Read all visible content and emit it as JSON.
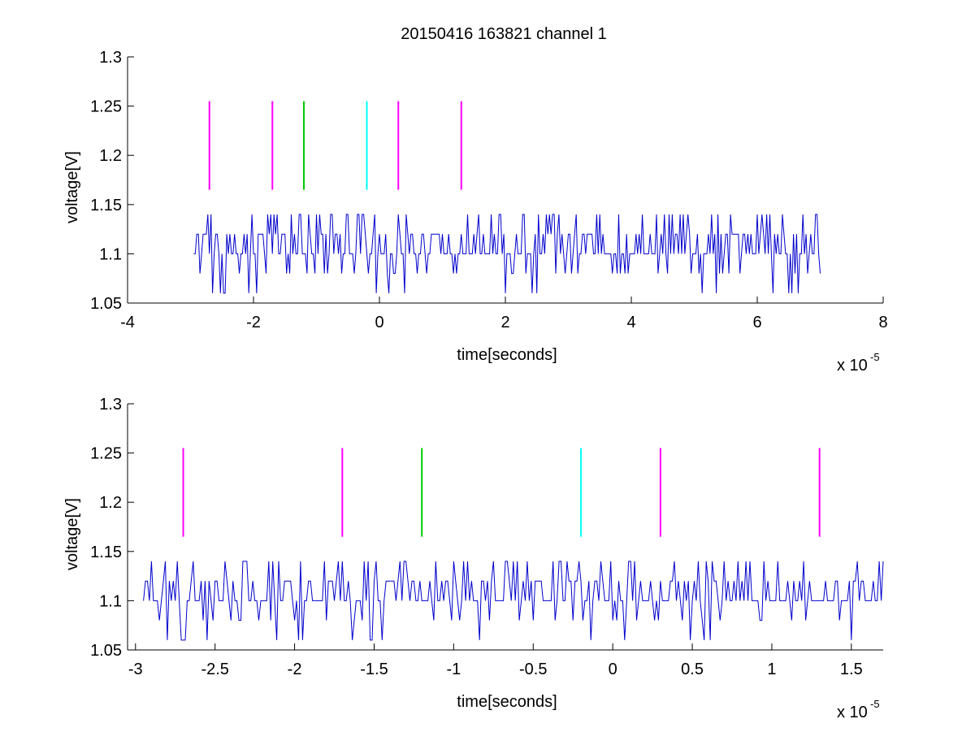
{
  "figure": {
    "title": "20150416 163821 channel 1",
    "background": "#ffffff"
  },
  "chart_data": [
    {
      "type": "line",
      "title": "20150416 163821 channel 1",
      "xlabel": "time[seconds]",
      "ylabel": "voltage[V]",
      "x_exponent_label": "x 10",
      "x_exponent_power": "-5",
      "xlim": [
        -4,
        8
      ],
      "ylim": [
        1.05,
        1.3
      ],
      "xticks": [
        -4,
        -2,
        0,
        2,
        4,
        6,
        8
      ],
      "xtick_labels": [
        "-4",
        "-2",
        "0",
        "2",
        "4",
        "6",
        "8"
      ],
      "yticks": [
        1.05,
        1.1,
        1.15,
        1.2,
        1.25,
        1.3
      ],
      "ytick_labels": [
        "1.05",
        "1.1",
        "1.15",
        "1.2",
        "1.25",
        "1.3"
      ],
      "grid": false,
      "signal": {
        "color": "#0000cc",
        "x_range": [
          -2.95,
          7.0
        ],
        "levels": [
          1.06,
          1.08,
          1.1,
          1.12,
          1.14
        ],
        "baseline": 1.1,
        "description_units": "x values in units of 1e-5 seconds"
      },
      "markers": {
        "y_range": [
          1.165,
          1.255
        ],
        "lines": [
          {
            "x": -2.7,
            "color": "#ff00ff"
          },
          {
            "x": -1.7,
            "color": "#ff00ff"
          },
          {
            "x": -1.2,
            "color": "#00cc00"
          },
          {
            "x": -0.2,
            "color": "#00ffff"
          },
          {
            "x": 0.3,
            "color": "#ff00ff"
          },
          {
            "x": 1.3,
            "color": "#ff00ff"
          }
        ]
      }
    },
    {
      "type": "line",
      "xlabel": "time[seconds]",
      "ylabel": "voltage[V]",
      "x_exponent_label": "x 10",
      "x_exponent_power": "-5",
      "xlim": [
        -3.05,
        1.7
      ],
      "ylim": [
        1.05,
        1.3
      ],
      "xticks": [
        -3,
        -2.5,
        -2,
        -1.5,
        -1,
        -0.5,
        0,
        0.5,
        1,
        1.5
      ],
      "xtick_labels": [
        "-3",
        "-2.5",
        "-2",
        "-1.5",
        "-1",
        "-0.5",
        "0",
        "0.5",
        "1",
        "1.5"
      ],
      "yticks": [
        1.05,
        1.1,
        1.15,
        1.2,
        1.25,
        1.3
      ],
      "ytick_labels": [
        "1.05",
        "1.1",
        "1.15",
        "1.2",
        "1.25",
        "1.3"
      ],
      "grid": false,
      "signal": {
        "color": "#0000cc",
        "x_range": [
          -2.95,
          1.7
        ],
        "levels": [
          1.06,
          1.08,
          1.1,
          1.12,
          1.14
        ],
        "baseline": 1.1,
        "description_units": "x values in units of 1e-5 seconds"
      },
      "markers": {
        "y_range": [
          1.165,
          1.255
        ],
        "lines": [
          {
            "x": -2.7,
            "color": "#ff00ff"
          },
          {
            "x": -1.7,
            "color": "#ff00ff"
          },
          {
            "x": -1.2,
            "color": "#00cc00"
          },
          {
            "x": -0.2,
            "color": "#00ffff"
          },
          {
            "x": 0.3,
            "color": "#ff00ff"
          },
          {
            "x": 1.3,
            "color": "#ff00ff"
          }
        ]
      }
    }
  ]
}
